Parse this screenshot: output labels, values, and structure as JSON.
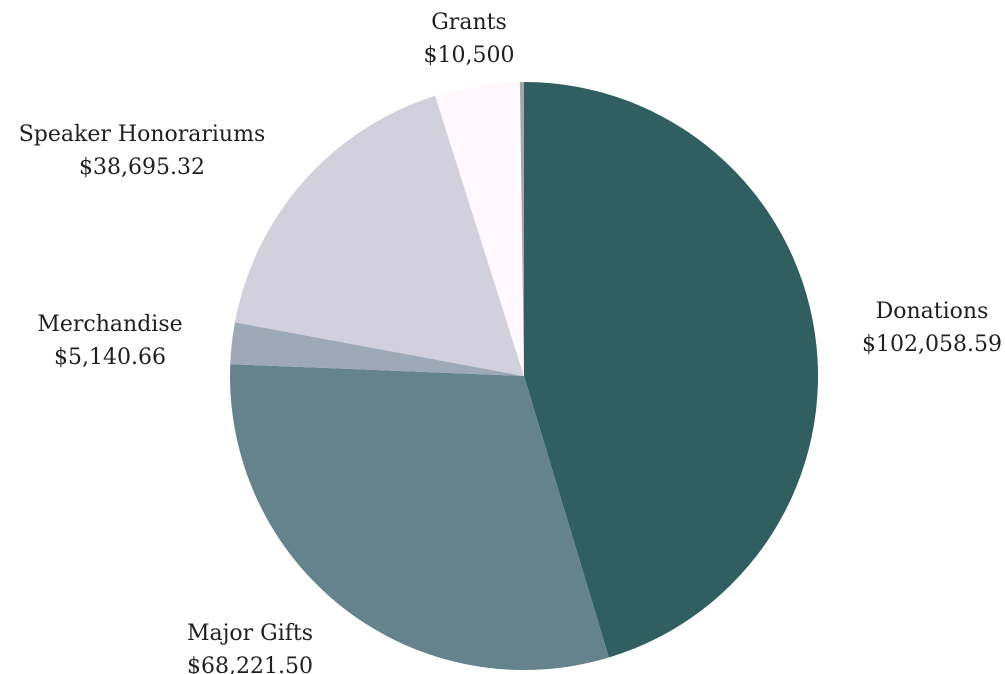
{
  "chart_data": {
    "type": "pie",
    "title": "",
    "start": "12 o'clock",
    "direction": "clockwise",
    "slices": [
      {
        "label": "Donations",
        "value_label": "$102,058.59",
        "value": 102058.59,
        "color": "#315e60"
      },
      {
        "label": "Major Gifts",
        "value_label": "$68,221.50",
        "value": 68221.5,
        "color": "#65838c"
      },
      {
        "label": "Merchandise",
        "value_label": "$5,140.66",
        "value": 5140.66,
        "color": "#9ea9b8"
      },
      {
        "label": "Speaker Honorariums",
        "value_label": "$38,695.32",
        "value": 38695.32,
        "color": "#d1d0dc"
      },
      {
        "label": "Grants",
        "value_label": "$10,500",
        "value": 10500,
        "color": "#fff9fd"
      },
      {
        "label": "",
        "value_label": "",
        "value": 500,
        "color": "#a6a6ab"
      }
    ]
  }
}
